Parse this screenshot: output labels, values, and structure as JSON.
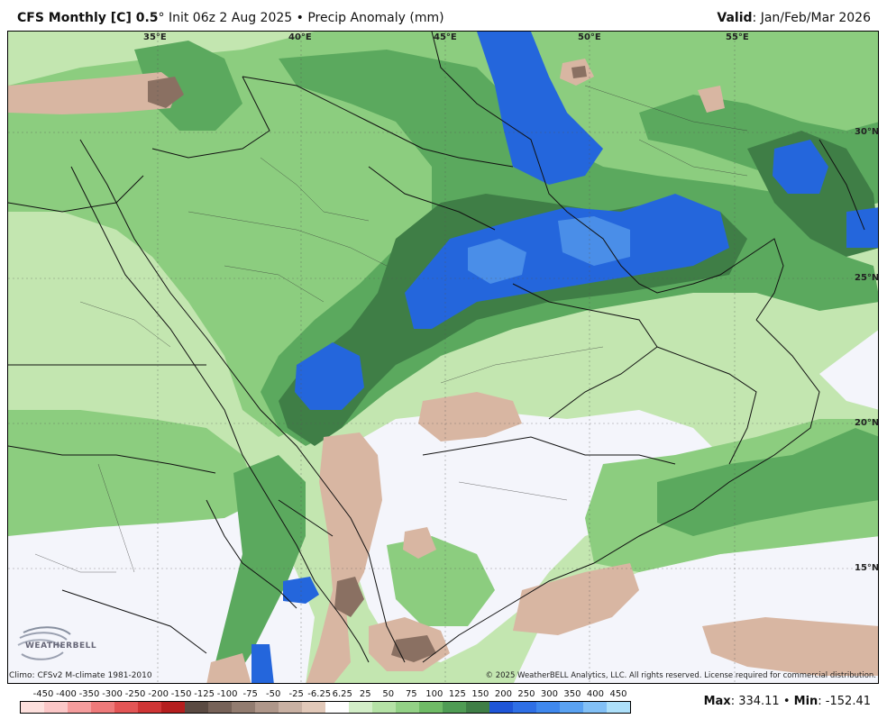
{
  "header": {
    "model": "CFS Monthly [C] 0.5",
    "degree": "°",
    "init": " Init 06z 2 Aug 2025 • Precip Anomaly (mm)",
    "valid_label": "Valid",
    "valid_value": ": Jan/Feb/Mar 2026"
  },
  "map": {
    "longitude_labels": [
      "35°E",
      "40°E",
      "45°E",
      "50°E",
      "55°E"
    ],
    "latitude_labels": [
      "30°N",
      "25°N",
      "20°N",
      "15°N"
    ]
  },
  "footer": {
    "climo": "Climo: CFSv2 M-climate 1981-2010",
    "copyright": "© 2025 WeatherBELL Analytics, LLC. All rights reserved. License required for commercial distribution.",
    "max_label": "Max",
    "max_value": ": 334.11",
    "sep": " • ",
    "min_label": "Min",
    "min_value": ": -152.41",
    "logo_text": "WEATHERBELL"
  },
  "colorbar": {
    "ticks": [
      "-450",
      "-400",
      "-350",
      "-300",
      "-250",
      "-200",
      "-150",
      "-125",
      "-100",
      "-75",
      "-50",
      "-25",
      "-6.25",
      "6.25",
      "25",
      "50",
      "75",
      "100",
      "125",
      "150",
      "200",
      "250",
      "300",
      "350",
      "400",
      "450"
    ],
    "colors": [
      "#fde0dd",
      "#fbc7c7",
      "#f59d9d",
      "#ee7a7a",
      "#e35555",
      "#cf3535",
      "#b51e1e",
      "#5a4a42",
      "#766258",
      "#927c70",
      "#af978a",
      "#c9b1a3",
      "#e2c9b9",
      "#ffffff",
      "#d3eec8",
      "#b5e2a6",
      "#93d186",
      "#6fbb66",
      "#4f9c54",
      "#3f7e46",
      "#1e55d8",
      "#2e6fe6",
      "#3f88ee",
      "#5aa2f2",
      "#82c0f6",
      "#ade0fa"
    ]
  },
  "colors": {
    "light_green": "#c3e6b0",
    "mid_green": "#8ccd7f",
    "green": "#5ba95e",
    "dark_green": "#3f7e46",
    "blue": "#2466dc",
    "light_blue": "#4a8ee8",
    "tan": "#d8b6a2",
    "dark_tan": "#8a7062",
    "white_area": "#f4f5fb"
  }
}
